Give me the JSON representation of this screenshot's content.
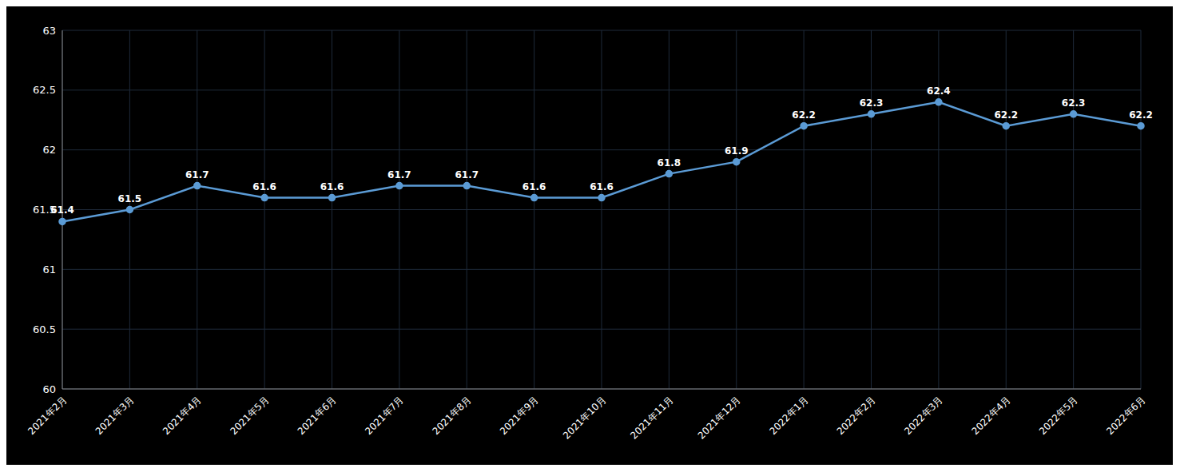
{
  "chart_data": {
    "type": "line",
    "categories": [
      "2021年2月",
      "2021年3月",
      "2021年4月",
      "2021年5月",
      "2021年6月",
      "2021年7月",
      "2021年8月",
      "2021年9月",
      "2021年10月",
      "2021年11月",
      "2021年12月",
      "2022年1月",
      "2022年2月",
      "2022年3月",
      "2022年4月",
      "2022年5月",
      "2022年6月"
    ],
    "values": [
      61.4,
      61.5,
      61.7,
      61.6,
      61.6,
      61.7,
      61.7,
      61.6,
      61.6,
      61.8,
      61.9,
      62.2,
      62.3,
      62.4,
      62.2,
      62.3,
      62.2
    ],
    "color": "#5B9BD5",
    "ylim": [
      60,
      63
    ],
    "yticks": [
      60,
      60.5,
      61,
      61.5,
      62,
      62.5,
      63
    ],
    "grid": true,
    "data_labels": true,
    "marker": "o"
  }
}
